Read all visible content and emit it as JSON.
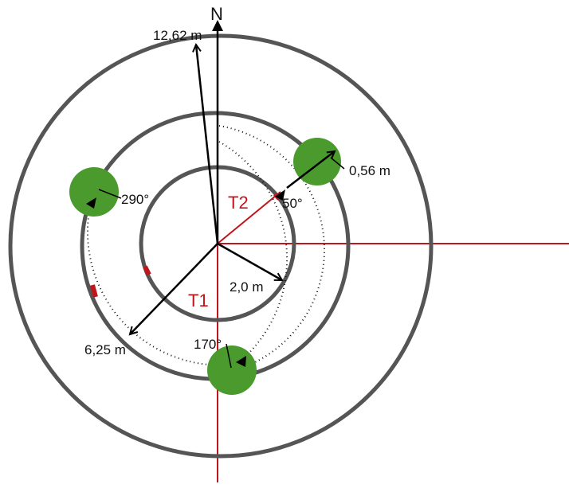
{
  "diagram": {
    "north_label": "N",
    "labels": {
      "radius_outer": "12,62 m",
      "radius_middle": "6,25 m",
      "radius_inner": "2,0 m",
      "tree_diameter": "0,56 m",
      "angle_290": "290°",
      "angle_50": "50°",
      "angle_170": "170°",
      "transect_t1": "T1",
      "transect_t2": "T2"
    },
    "colors": {
      "ring": "#555555",
      "tree": "#4a9a2e",
      "transect": "#c0151c",
      "arrow": "#000000",
      "marker": "#c0151c"
    }
  }
}
